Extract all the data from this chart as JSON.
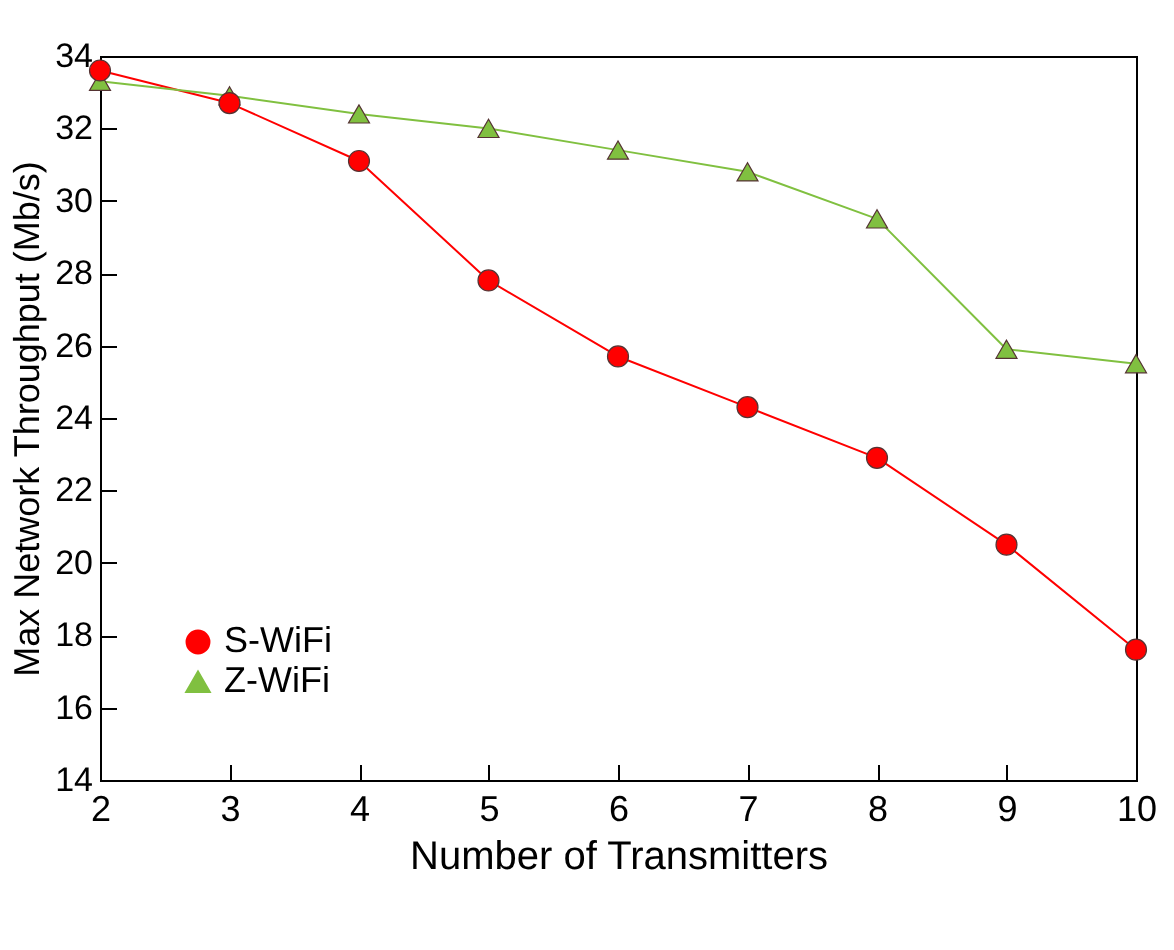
{
  "chart_data": {
    "type": "line",
    "xlabel": "Number of Transmitters",
    "ylabel": "Max Network Throughput (Mb/s)",
    "x": [
      2,
      3,
      4,
      5,
      6,
      7,
      8,
      9,
      10
    ],
    "series": [
      {
        "name": "S-WiFi",
        "color": "#ff0000",
        "marker": "circle",
        "values": [
          33.6,
          32.7,
          31.1,
          27.8,
          25.7,
          24.3,
          22.9,
          20.5,
          17.6
        ]
      },
      {
        "name": "Z-WiFi",
        "color": "#80c040",
        "marker": "triangle",
        "values": [
          33.3,
          32.9,
          32.4,
          32.0,
          31.4,
          30.8,
          29.5,
          25.9,
          25.5
        ]
      }
    ],
    "xlim": [
      2,
      10
    ],
    "xticks": [
      2,
      3,
      4,
      5,
      6,
      7,
      8,
      9,
      10
    ],
    "ylim": [
      14,
      34
    ],
    "yticks": [
      14,
      16,
      18,
      20,
      22,
      24,
      26,
      28,
      30,
      32,
      34
    ],
    "grid": false,
    "legend": "bottom left"
  }
}
